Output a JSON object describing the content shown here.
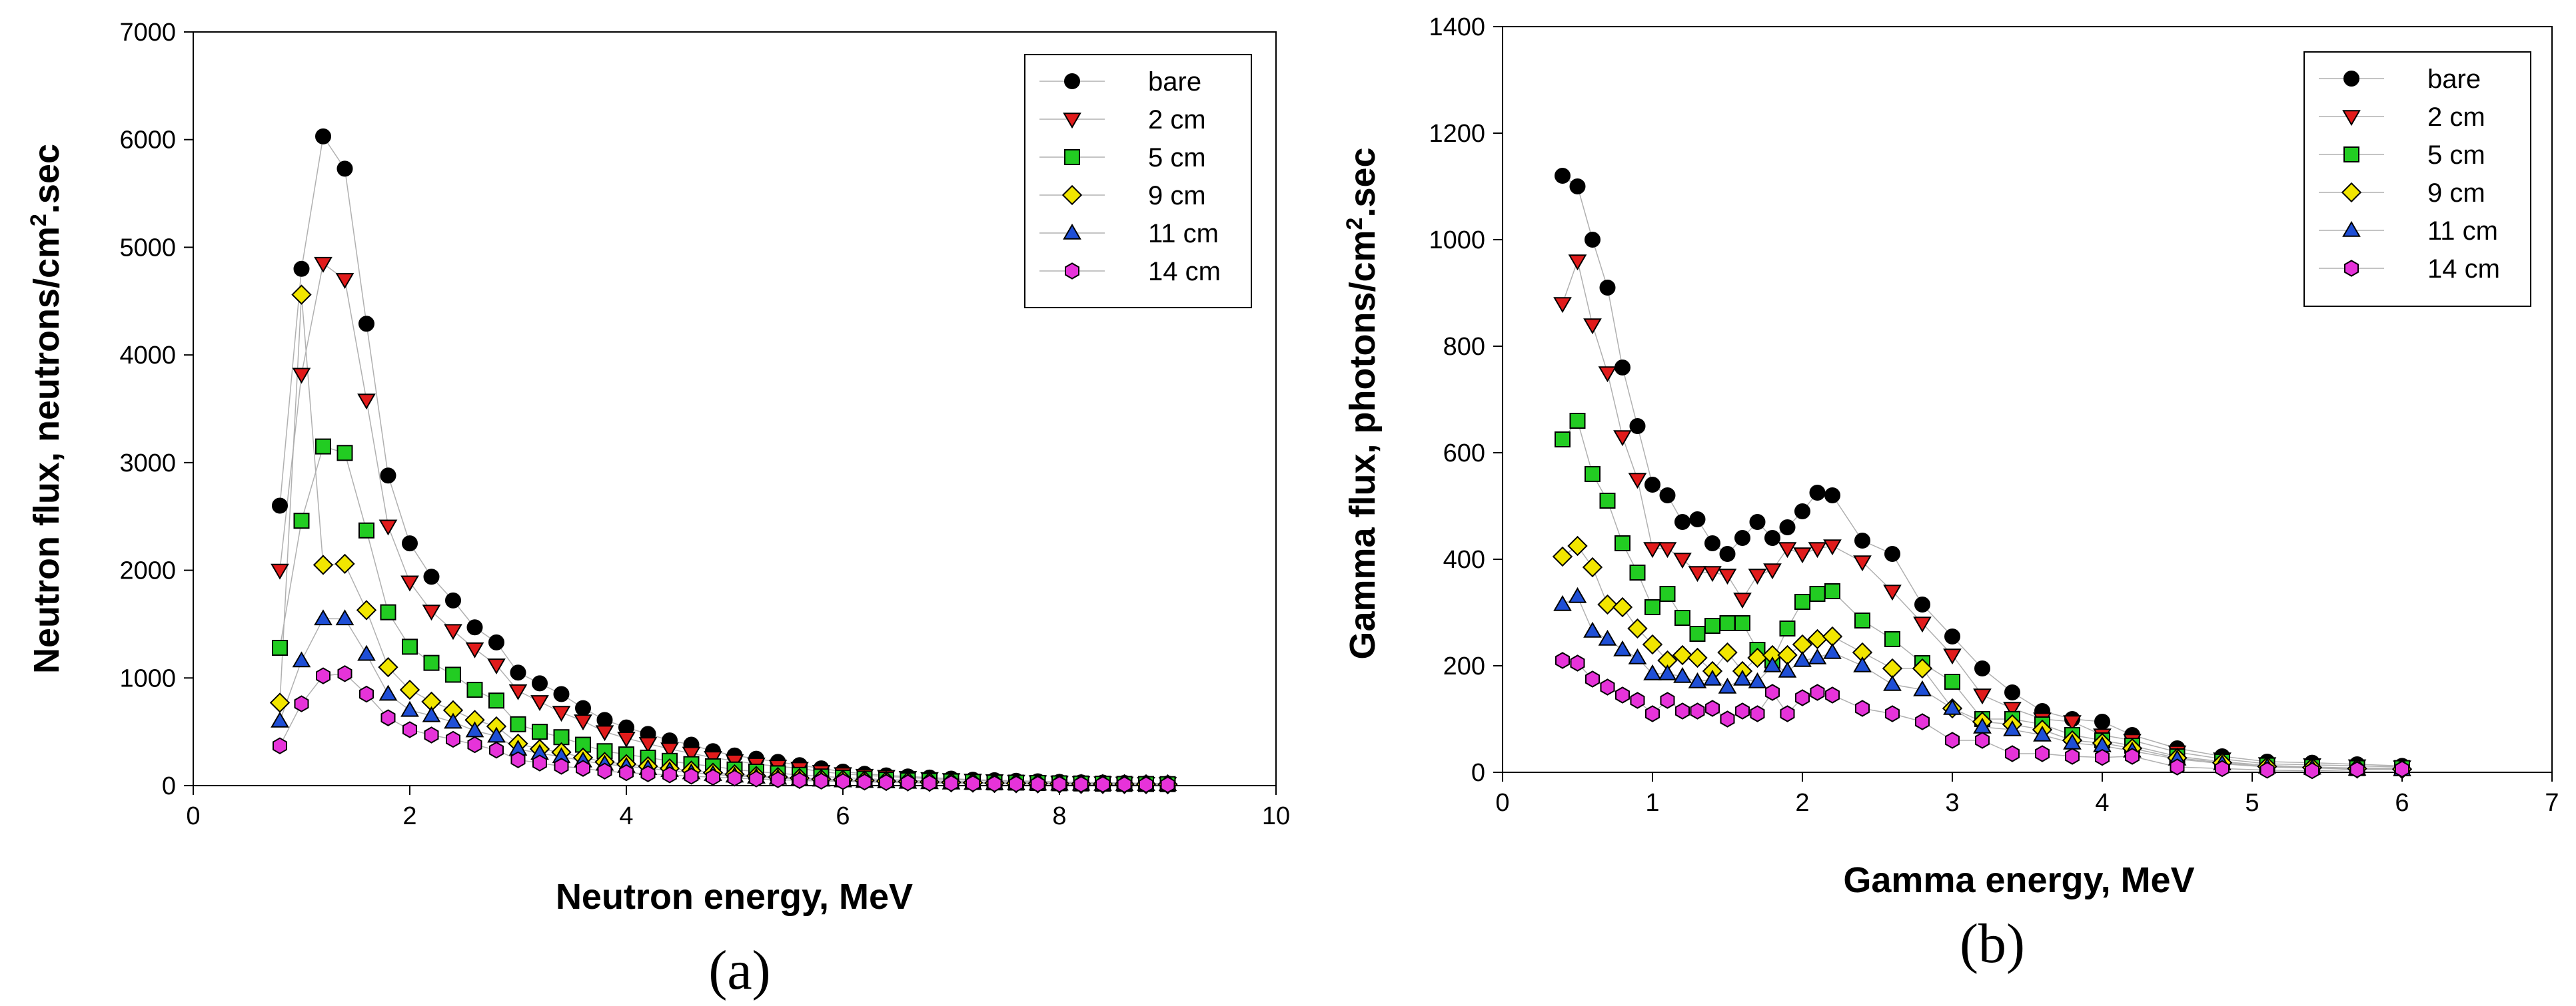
{
  "chart_data": [
    {
      "type": "scatter",
      "panel_label": "(a)",
      "xlabel": "Neutron energy, MeV",
      "ylabel_main": "Neutron flux, neutrons/cm",
      "ylabel_sup": "2",
      "ylabel_tail": ".sec",
      "xlim": [
        0,
        10
      ],
      "ylim": [
        0,
        7000
      ],
      "xticks": [
        0,
        2,
        4,
        6,
        8,
        10
      ],
      "yticks": [
        0,
        1000,
        2000,
        3000,
        4000,
        5000,
        6000,
        7000
      ],
      "grid": false,
      "legend_position": "top-right",
      "x": [
        0.8,
        1.0,
        1.2,
        1.4,
        1.6,
        1.8,
        2.0,
        2.2,
        2.4,
        2.6,
        2.8,
        3.0,
        3.2,
        3.4,
        3.6,
        3.8,
        4.0,
        4.2,
        4.4,
        4.6,
        4.8,
        5.0,
        5.2,
        5.4,
        5.6,
        5.8,
        6.0,
        6.2,
        6.4,
        6.6,
        6.8,
        7.0,
        7.2,
        7.4,
        7.6,
        7.8,
        8.0,
        8.2,
        8.4,
        8.6,
        8.8,
        9.0
      ],
      "series": [
        {
          "name": "bare",
          "marker": "circle",
          "color": "#000000",
          "values": [
            2600,
            4800,
            6030,
            5730,
            4290,
            2880,
            2250,
            1940,
            1720,
            1470,
            1330,
            1050,
            950,
            850,
            720,
            610,
            540,
            480,
            420,
            380,
            320,
            280,
            250,
            220,
            190,
            160,
            130,
            110,
            95,
            85,
            75,
            65,
            55,
            50,
            45,
            40,
            35,
            30,
            28,
            25,
            22,
            20
          ]
        },
        {
          "name": "2 cm",
          "marker": "triangle-down",
          "color": "#e11b1b",
          "values": [
            2000,
            3820,
            4850,
            4700,
            3580,
            2410,
            1890,
            1620,
            1440,
            1270,
            1120,
            880,
            780,
            680,
            600,
            500,
            440,
            390,
            340,
            300,
            260,
            230,
            200,
            180,
            160,
            130,
            110,
            95,
            85,
            75,
            65,
            55,
            50,
            45,
            40,
            35,
            30,
            27,
            25,
            22,
            20,
            18
          ]
        },
        {
          "name": "5 cm",
          "marker": "square",
          "color": "#22cc22",
          "values": [
            1280,
            2460,
            3150,
            3090,
            2370,
            1610,
            1290,
            1140,
            1030,
            890,
            790,
            570,
            500,
            450,
            380,
            320,
            290,
            260,
            230,
            200,
            180,
            150,
            130,
            115,
            100,
            85,
            75,
            65,
            55,
            50,
            45,
            40,
            35,
            30,
            28,
            25,
            22,
            20,
            18,
            16,
            15,
            14
          ]
        },
        {
          "name": "9 cm",
          "marker": "diamond",
          "color": "#f2e600",
          "values": [
            770,
            4560,
            2050,
            2060,
            1630,
            1100,
            890,
            780,
            700,
            610,
            550,
            390,
            340,
            310,
            260,
            220,
            200,
            180,
            160,
            140,
            120,
            105,
            90,
            80,
            70,
            60,
            55,
            48,
            42,
            38,
            34,
            30,
            27,
            24,
            22,
            20,
            18,
            16,
            15,
            14,
            13,
            12
          ]
        },
        {
          "name": "11 cm",
          "marker": "triangle-up",
          "color": "#1f4fd6",
          "values": [
            600,
            1160,
            1550,
            1550,
            1220,
            850,
            700,
            650,
            590,
            510,
            460,
            340,
            300,
            270,
            230,
            200,
            180,
            160,
            140,
            120,
            105,
            90,
            80,
            70,
            60,
            52,
            45,
            40,
            36,
            32,
            28,
            25,
            22,
            20,
            18,
            16,
            15,
            14,
            13,
            12,
            11,
            10
          ]
        },
        {
          "name": "14 cm",
          "marker": "hexagon",
          "color": "#e633d9",
          "values": [
            370,
            760,
            1020,
            1040,
            850,
            630,
            520,
            470,
            430,
            380,
            330,
            240,
            210,
            180,
            160,
            135,
            120,
            110,
            100,
            88,
            78,
            70,
            62,
            55,
            48,
            42,
            38,
            34,
            30,
            27,
            24,
            21,
            19,
            17,
            15,
            14,
            13,
            12,
            11,
            10,
            9,
            8
          ]
        }
      ]
    },
    {
      "type": "scatter",
      "panel_label": "(b)",
      "xlabel": "Gamma energy, MeV",
      "ylabel_main": "Gamma flux, photons/cm",
      "ylabel_sup": "2",
      "ylabel_tail": ".sec",
      "xlim": [
        0,
        7
      ],
      "ylim": [
        0,
        1400
      ],
      "xticks": [
        0,
        1,
        2,
        3,
        4,
        5,
        6,
        7
      ],
      "yticks": [
        0,
        200,
        400,
        600,
        800,
        1000,
        1200,
        1400
      ],
      "grid": false,
      "legend_position": "top-right",
      "x": [
        0.4,
        0.5,
        0.6,
        0.7,
        0.8,
        0.9,
        1.0,
        1.1,
        1.2,
        1.3,
        1.4,
        1.5,
        1.6,
        1.7,
        1.8,
        1.9,
        2.0,
        2.1,
        2.2,
        2.4,
        2.6,
        2.8,
        3.0,
        3.2,
        3.4,
        3.6,
        3.8,
        4.0,
        4.2,
        4.5,
        4.8,
        5.1,
        5.4,
        5.7,
        6.0
      ],
      "series": [
        {
          "name": "bare",
          "marker": "circle",
          "color": "#000000",
          "values": [
            1120,
            1100,
            1000,
            910,
            760,
            650,
            540,
            520,
            470,
            475,
            430,
            410,
            440,
            470,
            440,
            460,
            490,
            525,
            520,
            435,
            410,
            315,
            255,
            195,
            150,
            115,
            100,
            95,
            70,
            45,
            30,
            20,
            18,
            15,
            12
          ]
        },
        {
          "name": "2 cm",
          "marker": "triangle-down",
          "color": "#e11b1b",
          "values": [
            880,
            960,
            840,
            750,
            630,
            550,
            420,
            420,
            400,
            375,
            375,
            370,
            325,
            370,
            380,
            420,
            410,
            420,
            425,
            395,
            340,
            280,
            220,
            145,
            120,
            100,
            95,
            70,
            60,
            38,
            25,
            16,
            14,
            12,
            10
          ]
        },
        {
          "name": "5 cm",
          "marker": "square",
          "color": "#22cc22",
          "values": [
            625,
            660,
            560,
            510,
            430,
            375,
            310,
            335,
            290,
            260,
            275,
            280,
            280,
            230,
            210,
            270,
            320,
            335,
            340,
            285,
            250,
            205,
            170,
            100,
            100,
            90,
            70,
            60,
            50,
            30,
            20,
            13,
            10,
            8,
            8
          ]
        },
        {
          "name": "9 cm",
          "marker": "diamond",
          "color": "#f2e600",
          "values": [
            405,
            425,
            385,
            315,
            310,
            270,
            240,
            210,
            220,
            215,
            190,
            225,
            190,
            215,
            220,
            220,
            240,
            250,
            255,
            225,
            195,
            195,
            120,
            95,
            90,
            80,
            60,
            55,
            45,
            27,
            18,
            11,
            9,
            7,
            6
          ]
        },
        {
          "name": "11 cm",
          "marker": "triangle-up",
          "color": "#1f4fd6",
          "values": [
            315,
            330,
            265,
            250,
            230,
            215,
            185,
            185,
            180,
            170,
            175,
            160,
            175,
            170,
            200,
            190,
            210,
            215,
            225,
            200,
            165,
            155,
            120,
            85,
            80,
            70,
            55,
            50,
            40,
            25,
            16,
            10,
            8,
            6,
            5
          ]
        },
        {
          "name": "14 cm",
          "marker": "hexagon",
          "color": "#e633d9",
          "values": [
            210,
            205,
            175,
            160,
            145,
            135,
            110,
            135,
            115,
            115,
            120,
            100,
            115,
            110,
            150,
            110,
            140,
            150,
            145,
            120,
            110,
            95,
            60,
            60,
            35,
            35,
            30,
            28,
            30,
            10,
            7,
            4,
            3,
            5,
            6
          ]
        }
      ]
    }
  ]
}
